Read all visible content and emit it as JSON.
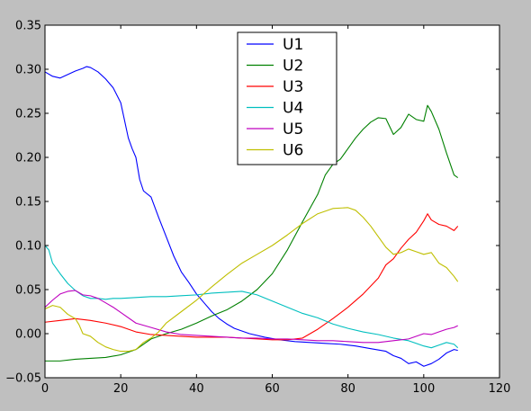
{
  "chart_data": {
    "type": "line",
    "title": "",
    "xlabel": "",
    "ylabel": "",
    "xlim": [
      0,
      120
    ],
    "ylim": [
      -0.05,
      0.35
    ],
    "xticks": [
      0,
      20,
      40,
      60,
      80,
      100,
      120
    ],
    "xtick_labels": [
      "0",
      "20",
      "40",
      "60",
      "80",
      "100",
      "120"
    ],
    "yticks": [
      -0.05,
      0.0,
      0.05,
      0.1,
      0.15,
      0.2,
      0.25,
      0.3,
      0.35
    ],
    "ytick_labels": [
      "−0.05",
      "0.00",
      "0.05",
      "0.10",
      "0.15",
      "0.20",
      "0.25",
      "0.30",
      "0.35"
    ],
    "grid": false,
    "legend_position": "top-center",
    "series": [
      {
        "name": "U1",
        "color": "#0000ff",
        "x": [
          0,
          2,
          4,
          6,
          8,
          10,
          11,
          12,
          14,
          16,
          18,
          20,
          22,
          23,
          24,
          25,
          26,
          28,
          30,
          32,
          34,
          36,
          38,
          40,
          42,
          44,
          46,
          48,
          50,
          54,
          58,
          62,
          66,
          70,
          74,
          78,
          82,
          86,
          90,
          92,
          94,
          96,
          98,
          100,
          102,
          104,
          106,
          108,
          109
        ],
        "y": [
          0.297,
          0.292,
          0.29,
          0.294,
          0.298,
          0.301,
          0.303,
          0.302,
          0.297,
          0.289,
          0.279,
          0.262,
          0.222,
          0.21,
          0.2,
          0.175,
          0.162,
          0.155,
          0.132,
          0.11,
          0.088,
          0.07,
          0.058,
          0.045,
          0.035,
          0.025,
          0.017,
          0.011,
          0.006,
          0.0,
          -0.004,
          -0.007,
          -0.009,
          -0.01,
          -0.011,
          -0.012,
          -0.014,
          -0.017,
          -0.02,
          -0.025,
          -0.028,
          -0.034,
          -0.032,
          -0.037,
          -0.034,
          -0.029,
          -0.022,
          -0.018,
          -0.019
        ]
      },
      {
        "name": "U2",
        "color": "#008000",
        "x": [
          0,
          4,
          8,
          12,
          16,
          20,
          24,
          28,
          32,
          36,
          40,
          44,
          48,
          52,
          56,
          60,
          64,
          68,
          72,
          74,
          76,
          78,
          80,
          82,
          84,
          86,
          88,
          90,
          92,
          94,
          96,
          98,
          100,
          101,
          102,
          104,
          106,
          108,
          109
        ],
        "y": [
          -0.031,
          -0.031,
          -0.029,
          -0.028,
          -0.027,
          -0.024,
          -0.018,
          -0.006,
          0.0,
          0.005,
          0.012,
          0.02,
          0.027,
          0.037,
          0.05,
          0.068,
          0.095,
          0.127,
          0.158,
          0.18,
          0.192,
          0.198,
          0.21,
          0.222,
          0.232,
          0.24,
          0.245,
          0.244,
          0.226,
          0.234,
          0.249,
          0.243,
          0.241,
          0.259,
          0.252,
          0.232,
          0.205,
          0.18,
          0.177
        ]
      },
      {
        "name": "U3",
        "color": "#ff0000",
        "x": [
          0,
          4,
          8,
          10,
          12,
          16,
          20,
          24,
          28,
          32,
          36,
          40,
          44,
          48,
          52,
          56,
          60,
          64,
          68,
          72,
          76,
          80,
          84,
          88,
          90,
          92,
          94,
          96,
          98,
          100,
          101,
          102,
          104,
          106,
          108,
          109
        ],
        "y": [
          0.013,
          0.015,
          0.017,
          0.016,
          0.015,
          0.012,
          0.008,
          0.002,
          -0.001,
          -0.002,
          -0.003,
          -0.004,
          -0.004,
          -0.004,
          -0.005,
          -0.006,
          -0.007,
          -0.007,
          -0.005,
          0.005,
          0.017,
          0.03,
          0.045,
          0.063,
          0.078,
          0.085,
          0.097,
          0.107,
          0.115,
          0.128,
          0.136,
          0.129,
          0.124,
          0.122,
          0.117,
          0.122
        ]
      },
      {
        "name": "U4",
        "color": "#00bfbf",
        "x": [
          0,
          1,
          2,
          4,
          6,
          8,
          10,
          12,
          14,
          16,
          18,
          20,
          24,
          28,
          32,
          36,
          40,
          44,
          48,
          52,
          56,
          60,
          64,
          68,
          72,
          76,
          80,
          84,
          88,
          92,
          96,
          100,
          102,
          104,
          106,
          108,
          109
        ],
        "y": [
          0.1,
          0.095,
          0.08,
          0.068,
          0.057,
          0.049,
          0.043,
          0.04,
          0.04,
          0.039,
          0.04,
          0.04,
          0.041,
          0.042,
          0.042,
          0.043,
          0.044,
          0.046,
          0.047,
          0.048,
          0.044,
          0.037,
          0.03,
          0.023,
          0.018,
          0.011,
          0.006,
          0.002,
          -0.001,
          -0.005,
          -0.008,
          -0.014,
          -0.016,
          -0.013,
          -0.01,
          -0.012,
          -0.016
        ]
      },
      {
        "name": "U5",
        "color": "#bf00bf",
        "x": [
          0,
          2,
          4,
          6,
          8,
          10,
          12,
          14,
          16,
          18,
          20,
          24,
          28,
          32,
          36,
          40,
          44,
          48,
          52,
          56,
          60,
          64,
          68,
          72,
          76,
          80,
          84,
          88,
          92,
          96,
          100,
          102,
          104,
          106,
          108,
          109
        ],
        "y": [
          0.03,
          0.038,
          0.045,
          0.048,
          0.049,
          0.044,
          0.043,
          0.04,
          0.035,
          0.03,
          0.024,
          0.012,
          0.007,
          0.002,
          -0.001,
          -0.002,
          -0.003,
          -0.004,
          -0.005,
          -0.005,
          -0.006,
          -0.006,
          -0.007,
          -0.008,
          -0.008,
          -0.009,
          -0.01,
          -0.01,
          -0.008,
          -0.006,
          0.0,
          -0.001,
          0.002,
          0.005,
          0.007,
          0.009
        ]
      },
      {
        "name": "U6",
        "color": "#bfbf00",
        "x": [
          0,
          2,
          4,
          6,
          8,
          9,
          10,
          12,
          14,
          16,
          18,
          20,
          22,
          24,
          26,
          28,
          30,
          32,
          36,
          40,
          44,
          48,
          52,
          56,
          60,
          64,
          68,
          72,
          76,
          80,
          82,
          84,
          86,
          88,
          90,
          92,
          94,
          96,
          98,
          100,
          102,
          104,
          106,
          108,
          109
        ],
        "y": [
          0.028,
          0.032,
          0.03,
          0.022,
          0.017,
          0.01,
          0.0,
          -0.003,
          -0.01,
          -0.015,
          -0.018,
          -0.02,
          -0.02,
          -0.018,
          -0.01,
          -0.005,
          0.002,
          0.012,
          0.025,
          0.038,
          0.053,
          0.067,
          0.08,
          0.09,
          0.1,
          0.112,
          0.125,
          0.136,
          0.142,
          0.143,
          0.14,
          0.132,
          0.122,
          0.11,
          0.098,
          0.09,
          0.092,
          0.096,
          0.093,
          0.09,
          0.092,
          0.08,
          0.075,
          0.065,
          0.059
        ]
      }
    ]
  }
}
